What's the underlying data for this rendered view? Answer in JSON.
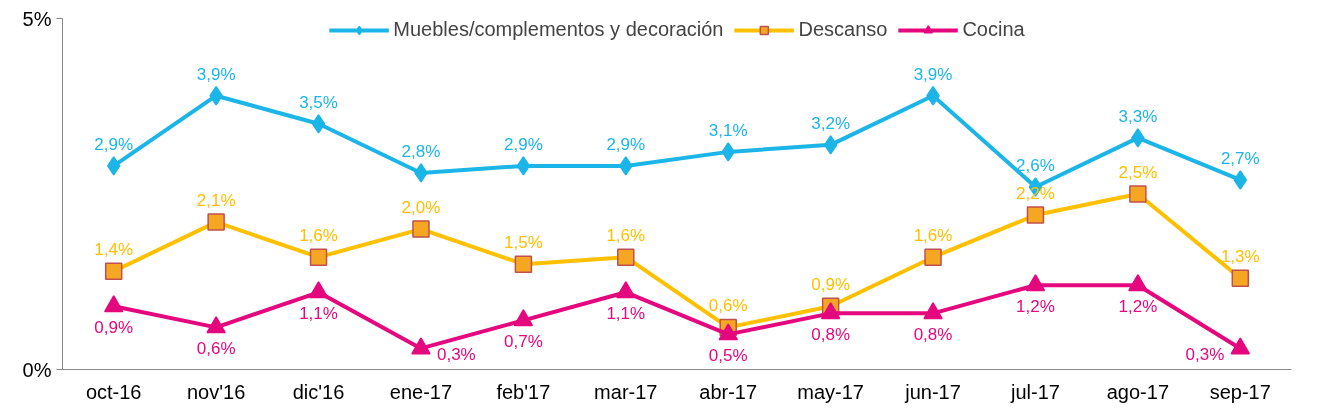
{
  "chart_data": {
    "type": "line",
    "categories": [
      "oct-16",
      "nov'16",
      "dic'16",
      "ene-17",
      "feb'17",
      "mar-17",
      "abr-17",
      "may-17",
      "jun-17",
      "jul-17",
      "ago-17",
      "sep-17"
    ],
    "series": [
      {
        "name": "Muebles/complementos y decoración",
        "color": "#1cb5e8",
        "marker": "diamond",
        "values": [
          2.9,
          3.9,
          3.5,
          2.8,
          2.9,
          2.9,
          3.1,
          3.2,
          3.9,
          2.6,
          3.3,
          2.7
        ],
        "value_labels": [
          "2,9%",
          "3,9%",
          "3,5%",
          "2,8%",
          "2,9%",
          "2,9%",
          "3,1%",
          "3,2%",
          "3,9%",
          "2,6%",
          "3,3%",
          "2,7%"
        ]
      },
      {
        "name": "Descanso",
        "color": "#ffc000",
        "marker": "square",
        "values": [
          1.4,
          2.1,
          1.6,
          2.0,
          1.5,
          1.6,
          0.6,
          0.9,
          1.6,
          2.2,
          2.5,
          1.3
        ],
        "value_labels": [
          "1,4%",
          "2,1%",
          "1,6%",
          "2,0%",
          "1,5%",
          "1,6%",
          "0,6%",
          "0,9%",
          "1,6%",
          "2,2%",
          "2,5%",
          "1,3%"
        ]
      },
      {
        "name": "Cocina",
        "color": "#e5077e",
        "marker": "triangle",
        "values": [
          0.9,
          0.6,
          1.1,
          0.3,
          0.7,
          1.1,
          0.5,
          0.8,
          0.8,
          1.2,
          1.2,
          0.3
        ],
        "value_labels": [
          "0,9%",
          "0,6%",
          "1,1%",
          "0,3%",
          "0,7%",
          "1,1%",
          "0,5%",
          "0,8%",
          "0,8%",
          "1,2%",
          "1,2%",
          "0,3%"
        ]
      }
    ],
    "ylim": [
      0,
      5
    ],
    "yticks": [
      {
        "value": 0,
        "label": "0%"
      },
      {
        "value": 5,
        "label": "5%"
      }
    ],
    "legend": "top"
  }
}
